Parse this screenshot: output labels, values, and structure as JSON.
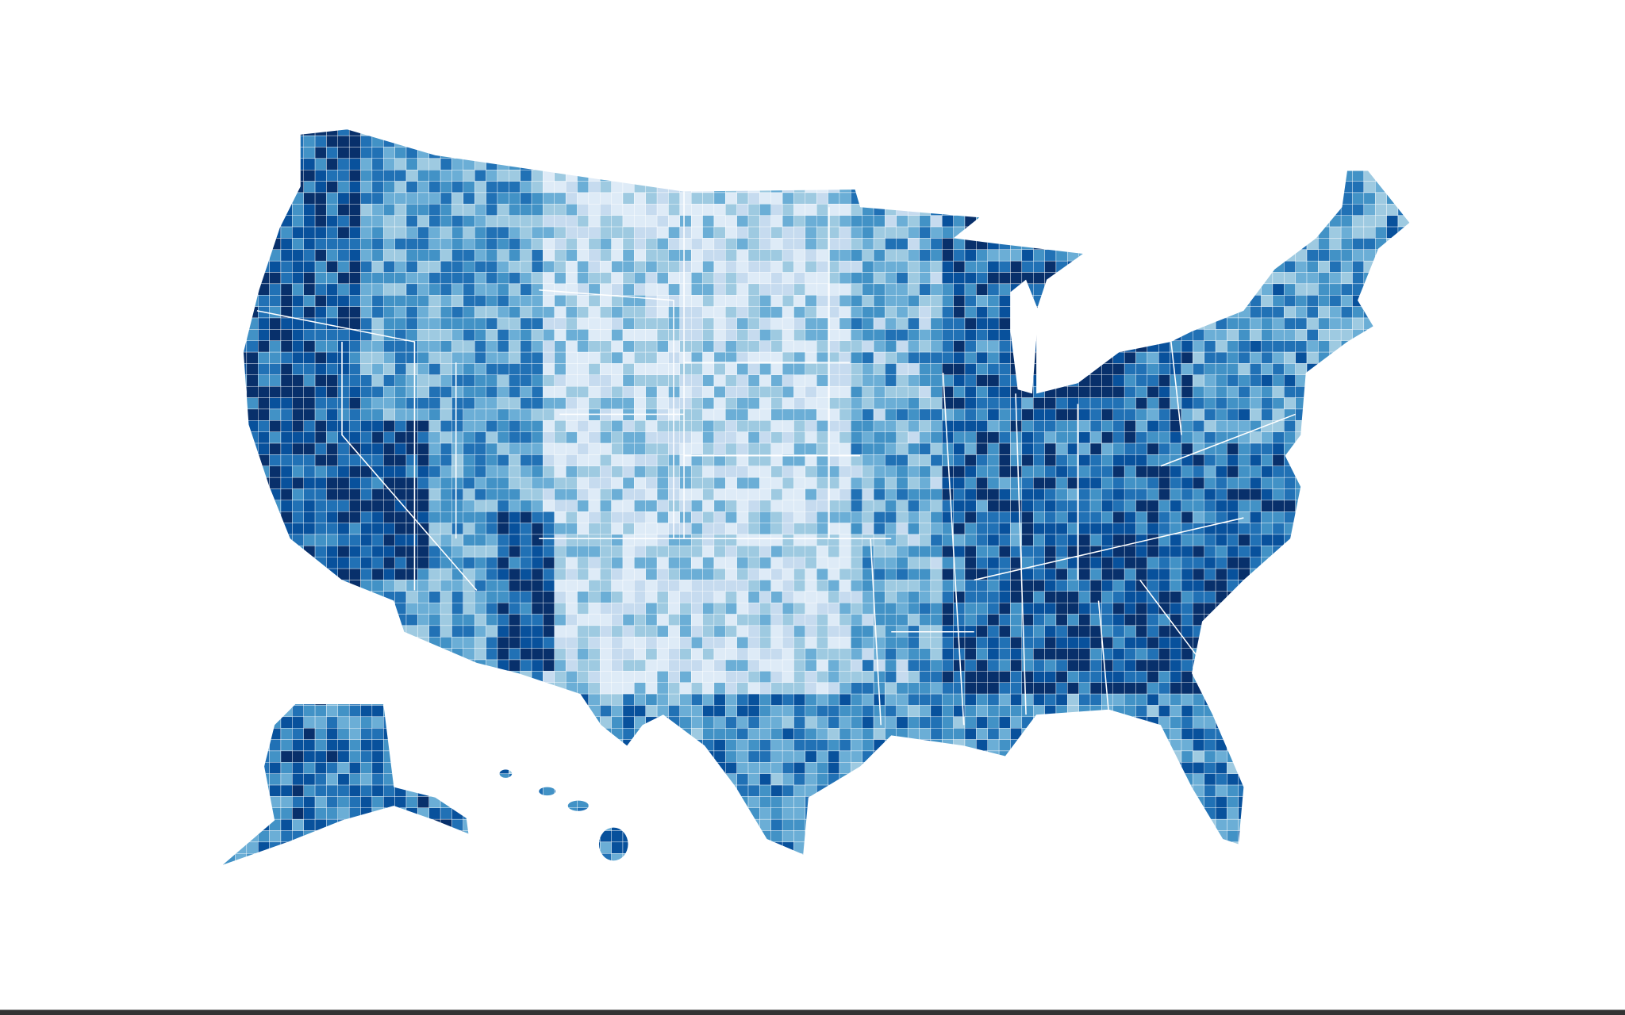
{
  "map": {
    "palette": [
      "#deebf7",
      "#c6dbef",
      "#9ecae1",
      "#6baed6",
      "#4292c6",
      "#2171b5",
      "#08519c",
      "#08306b"
    ]
  }
}
